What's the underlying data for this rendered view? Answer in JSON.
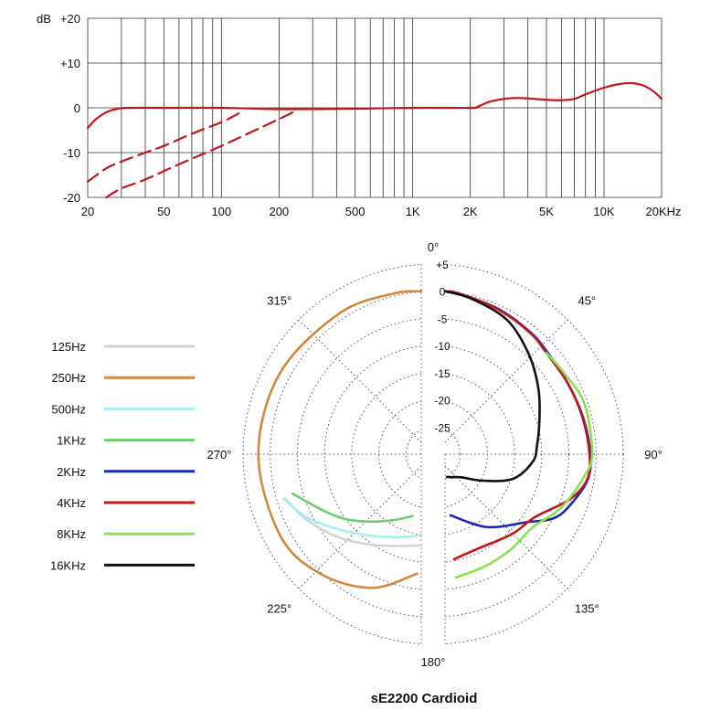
{
  "chart_data": [
    {
      "type": "line",
      "x_scale": "log",
      "xlim": [
        20,
        20000
      ],
      "ylim": [
        -20,
        20
      ],
      "ylabel": "dB",
      "grid": true,
      "x_ticks": [
        {
          "v": 20,
          "label": "20"
        },
        {
          "v": 50,
          "label": "50"
        },
        {
          "v": 100,
          "label": "100"
        },
        {
          "v": 200,
          "label": "200"
        },
        {
          "v": 500,
          "label": "500"
        },
        {
          "v": 1000,
          "label": "1K"
        },
        {
          "v": 2000,
          "label": "2K"
        },
        {
          "v": 5000,
          "label": "5K"
        },
        {
          "v": 10000,
          "label": "10K"
        },
        {
          "v": 20000,
          "label": "20KHz"
        }
      ],
      "y_ticks": [
        {
          "v": 20,
          "label": "+20"
        },
        {
          "v": 10,
          "label": "+10"
        },
        {
          "v": 0,
          "label": "0"
        },
        {
          "v": -10,
          "label": "-10"
        },
        {
          "v": -20,
          "label": "-20"
        }
      ],
      "color": "#c0171c",
      "series": [
        {
          "style": "solid",
          "points": [
            [
              20,
              -4.5
            ],
            [
              22,
              -2.6
            ],
            [
              25,
              -1
            ],
            [
              28,
              -0.3
            ],
            [
              32,
              0
            ],
            [
              50,
              0
            ],
            [
              100,
              0
            ],
            [
              200,
              -0.3
            ],
            [
              500,
              -0.2
            ],
            [
              1000,
              0
            ],
            [
              2000,
              0
            ],
            [
              2200,
              0.3
            ],
            [
              2500,
              1.3
            ],
            [
              3000,
              2
            ],
            [
              3500,
              2.2
            ],
            [
              4000,
              2.1
            ],
            [
              5000,
              1.8
            ],
            [
              6000,
              1.7
            ],
            [
              7000,
              2
            ],
            [
              8000,
              3
            ],
            [
              10000,
              4.5
            ],
            [
              12000,
              5.3
            ],
            [
              14000,
              5.5
            ],
            [
              16000,
              5
            ],
            [
              18000,
              3.8
            ],
            [
              20000,
              2
            ]
          ]
        },
        {
          "style": "dashed",
          "points": [
            [
              20,
              -16.5
            ],
            [
              25,
              -13.5
            ],
            [
              30,
              -12
            ],
            [
              40,
              -10
            ],
            [
              50,
              -8.5
            ],
            [
              70,
              -5.8
            ],
            [
              100,
              -3.2
            ],
            [
              120,
              -1.5
            ],
            [
              130,
              -0.5
            ]
          ]
        },
        {
          "style": "dashed",
          "points": [
            [
              25,
              -20
            ],
            [
              30,
              -18
            ],
            [
              40,
              -16
            ],
            [
              60,
              -12.6
            ],
            [
              100,
              -8.5
            ],
            [
              150,
              -5
            ],
            [
              200,
              -2.5
            ],
            [
              250,
              -0.5
            ]
          ]
        }
      ]
    },
    {
      "type": "polar",
      "title": "sE2200  Cardioid",
      "r_ticks": [
        {
          "v": 5,
          "label": "+5"
        },
        {
          "v": 0,
          "label": "0"
        },
        {
          "v": -5,
          "label": "-5"
        },
        {
          "v": -10,
          "label": "-10"
        },
        {
          "v": -15,
          "label": "-15"
        },
        {
          "v": -20,
          "label": "-20"
        },
        {
          "v": -25,
          "label": "-25"
        }
      ],
      "r_range": [
        -30,
        5
      ],
      "angle_labels": [
        {
          "deg": 0,
          "label": "0°"
        },
        {
          "deg": 45,
          "label": "45°"
        },
        {
          "deg": 90,
          "label": "90°"
        },
        {
          "deg": 135,
          "label": "135°"
        },
        {
          "deg": 180,
          "label": "180°"
        },
        {
          "deg": 225,
          "label": "225°"
        },
        {
          "deg": 270,
          "label": "270°"
        },
        {
          "deg": 315,
          "label": "315°"
        }
      ],
      "legend_position": "left",
      "series": [
        {
          "name": "125Hz",
          "color": "#d3d3d3",
          "side": "left",
          "points": [
            [
              180,
              -13.2
            ],
            [
              195,
              -12.5
            ],
            [
              210,
              -10.8
            ],
            [
              225,
              -8.4
            ],
            [
              240,
              -5.7
            ],
            [
              252,
              -3.6
            ]
          ]
        },
        {
          "name": "250Hz",
          "color": "#d2873c",
          "side": "left",
          "points": [
            [
              0,
              0
            ],
            [
              10,
              0
            ],
            [
              30,
              0
            ],
            [
              60,
              0
            ],
            [
              90,
              0
            ],
            [
              120,
              0
            ],
            [
              140,
              -1.2
            ],
            [
              160,
              -3.8
            ],
            [
              178,
              -8
            ]
          ]
        },
        {
          "name": "500Hz",
          "color": "#a8eef5",
          "side": "left",
          "points": [
            [
              181,
              -15
            ],
            [
              195,
              -14.2
            ],
            [
              210,
              -12.6
            ],
            [
              225,
              -10
            ],
            [
              240,
              -6.2
            ],
            [
              252,
              -3.3
            ]
          ]
        },
        {
          "name": "1KHz",
          "color": "#6ccf6c",
          "side": "left",
          "points": [
            [
              188,
              -18.5
            ],
            [
              200,
              -17.2
            ],
            [
              212,
              -15.4
            ],
            [
              222,
              -13.4
            ],
            [
              230,
              -11.5
            ],
            [
              240,
              -9.2
            ],
            [
              253,
              -5.2
            ]
          ]
        },
        {
          "name": "2KHz",
          "color": "#1a28b4",
          "side": "right",
          "points": [
            [
              0,
              0
            ],
            [
              5,
              -0.3
            ],
            [
              20,
              -1.5
            ],
            [
              35,
              -2.6
            ],
            [
              45,
              -3.4
            ],
            [
              60,
              -3.9
            ],
            [
              75,
              -3.7
            ],
            [
              90,
              -3.2
            ],
            [
              100,
              -3.3
            ],
            [
              110,
              -4.8
            ],
            [
              120,
              -6.6
            ],
            [
              130,
              -10.5
            ],
            [
              150,
              -14.5
            ],
            [
              175,
              -18.7
            ]
          ]
        },
        {
          "name": "4KHz",
          "color": "#c0171c",
          "side": "right",
          "points": [
            [
              0,
              0
            ],
            [
              5,
              -0.3
            ],
            [
              20,
              -1.6
            ],
            [
              35,
              -2.7
            ],
            [
              45,
              -3.6
            ],
            [
              60,
              -3.9
            ],
            [
              75,
              -3.8
            ],
            [
              90,
              -3.4
            ],
            [
              100,
              -3.4
            ],
            [
              110,
              -5.6
            ],
            [
              125,
              -9.8
            ],
            [
              140,
              -10.8
            ],
            [
              160,
              -11.6
            ],
            [
              175,
              -10.6
            ]
          ]
        },
        {
          "name": "8KHz",
          "color": "#8ce052",
          "side": "right",
          "points": [
            [
              45,
              -3.6
            ],
            [
              55,
              -3.5
            ],
            [
              70,
              -2.7
            ],
            [
              90,
              -2.9
            ],
            [
              100,
              -4.2
            ],
            [
              115,
              -6.5
            ],
            [
              130,
              -9
            ],
            [
              145,
              -8.7
            ],
            [
              160,
              -8.1
            ],
            [
              175,
              -7.2
            ]
          ]
        },
        {
          "name": "16KHz",
          "color": "#111111",
          "side": "right",
          "points": [
            [
              0,
              0
            ],
            [
              10,
              -1
            ],
            [
              25,
              -2.8
            ],
            [
              40,
              -6
            ],
            [
              55,
              -9
            ],
            [
              70,
              -11.5
            ],
            [
              85,
              -13
            ],
            [
              95,
              -13.8
            ],
            [
              110,
              -16.7
            ],
            [
              125,
              -21.5
            ],
            [
              145,
              -24.8
            ],
            [
              165,
              -25.6
            ],
            [
              175,
              -25.8
            ]
          ]
        }
      ]
    }
  ]
}
